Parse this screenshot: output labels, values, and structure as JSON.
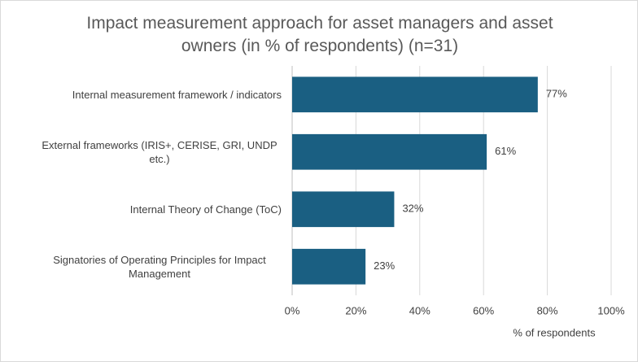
{
  "chart_data": {
    "type": "bar",
    "orientation": "horizontal",
    "title": "Impact measurement approach for asset managers and asset owners (in % of respondents) (n=31)",
    "categories": [
      "Internal measurement framework / indicators",
      "External frameworks (IRIS+, CERISE, GRI, UNDP etc.)",
      "Internal Theory of Change (ToC)",
      "Signatories of Operating Principles for Impact Management"
    ],
    "values": [
      77,
      61,
      32,
      23
    ],
    "value_labels": [
      "77%",
      "61%",
      "32%",
      "23%"
    ],
    "color": "#1a5f82",
    "x_label": "% of respondents",
    "xlim": [
      0,
      100
    ],
    "xticks": [
      {
        "value": 0,
        "label": "0%"
      },
      {
        "value": 20,
        "label": "20%"
      },
      {
        "value": 40,
        "label": "40%"
      },
      {
        "value": 60,
        "label": "60%"
      },
      {
        "value": 80,
        "label": "80%"
      },
      {
        "value": 100,
        "label": "100%"
      }
    ],
    "grid": true
  }
}
